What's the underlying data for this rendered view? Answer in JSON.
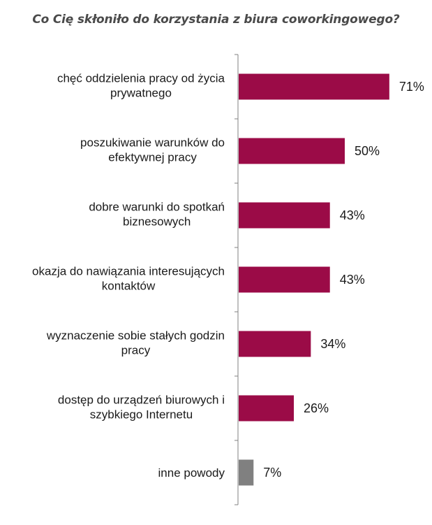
{
  "title": "Co Cię skłoniło do korzystania z biura coworkingowego?",
  "colors": {
    "accent": "#9b0b47",
    "other": "#808080",
    "axis": "#808080",
    "text": "#1a1a1a"
  },
  "chart_data": {
    "type": "bar",
    "orientation": "horizontal",
    "title": "Co Cię skłoniło do korzystania z biura coworkingowego?",
    "xlabel": "",
    "ylabel": "",
    "xlim": [
      0,
      100
    ],
    "grid": false,
    "legend": "none",
    "categories": [
      [
        "chęć oddzielenia pracy od życia",
        "prywatnego"
      ],
      [
        "poszukiwanie warunków do",
        "efektywnej pracy"
      ],
      [
        "dobre warunki do spotkań",
        "biznesowych"
      ],
      [
        "okazja do nawiązania interesujących",
        "kontaktów"
      ],
      [
        "wyznaczenie sobie stałych  godzin",
        "pracy"
      ],
      [
        "dostęp do urządzeń biurowych i",
        "szybkiego Internetu"
      ],
      [
        "inne powody"
      ]
    ],
    "values": [
      71,
      50,
      43,
      43,
      34,
      26,
      7
    ],
    "value_labels": [
      "71%",
      "50%",
      "43%",
      "43%",
      "34%",
      "26%",
      "7%"
    ],
    "bar_colors": [
      "#9b0b47",
      "#9b0b47",
      "#9b0b47",
      "#9b0b47",
      "#9b0b47",
      "#9b0b47",
      "#808080"
    ]
  }
}
